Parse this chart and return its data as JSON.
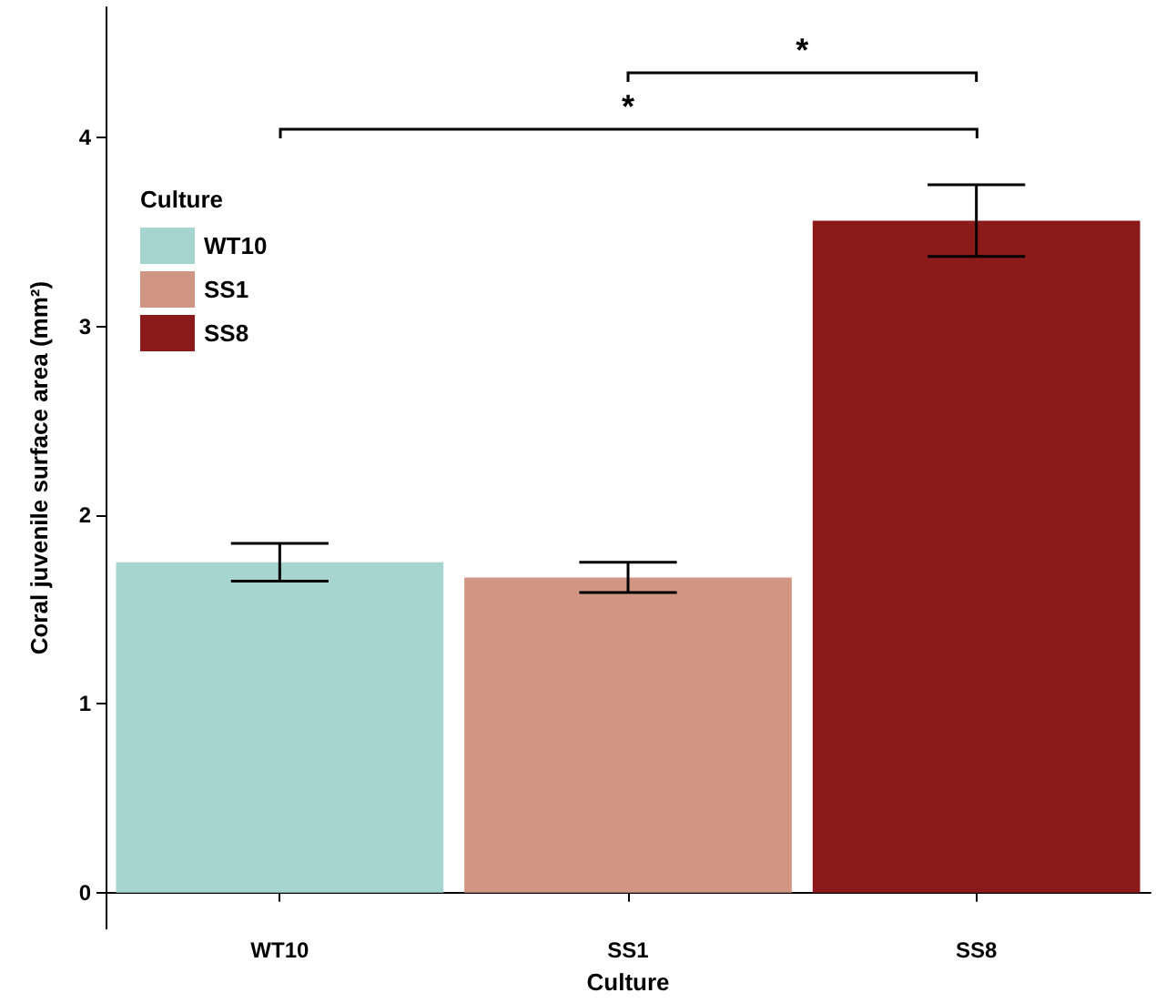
{
  "chart_data": {
    "type": "bar",
    "xlabel": "Culture",
    "ylabel": "Coral juvenile surface area (mm²)",
    "legend_title": "Culture",
    "legend": "top left",
    "categories": [
      "WT10",
      "SS1",
      "SS8"
    ],
    "stacked": true,
    "series": [
      {
        "name": "WT10",
        "color": "#a6d5cf",
        "values": [
          1.75,
          null,
          null
        ],
        "errors": [
          0.1,
          null,
          null
        ]
      },
      {
        "name": "SS1",
        "color": "#d09683",
        "values": [
          null,
          1.67,
          null
        ],
        "errors": [
          null,
          0.08,
          null
        ]
      },
      {
        "name": "SS8",
        "color": "#8b1a1a",
        "values": [
          null,
          null,
          3.56
        ],
        "errors": [
          null,
          null,
          0.19
        ]
      }
    ],
    "ylim": [
      -0.19,
      4.69
    ],
    "yticks": [
      0,
      1,
      2,
      3,
      4
    ],
    "grid": false,
    "annotations": [
      "*",
      "*"
    ]
  }
}
